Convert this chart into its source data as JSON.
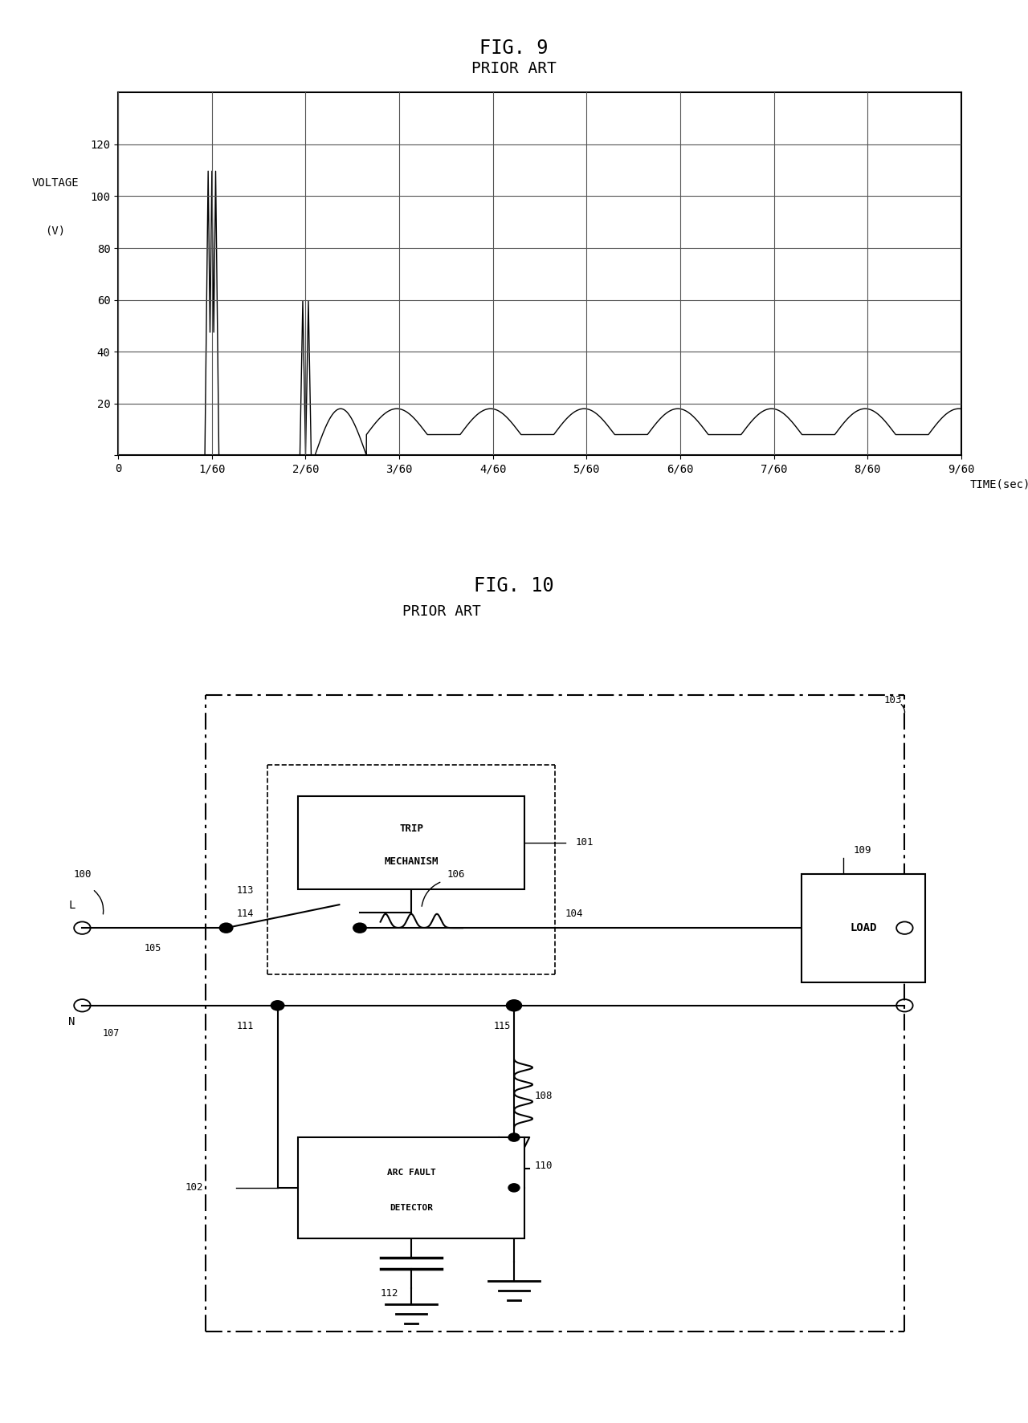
{
  "fig9_title": "FIG. 9",
  "fig9_subtitle": "PRIOR ART",
  "fig10_title": "FIG. 10",
  "fig10_subtitle": "PRIOR ART",
  "ylabel_line1": "VOLTAGE",
  "ylabel_line2": "(V)",
  "xlabel": "TIME(sec)",
  "yticks": [
    0,
    20,
    40,
    60,
    80,
    100,
    120
  ],
  "xtick_labels": [
    "0",
    "1/60",
    "2/60",
    "3/60",
    "4/60",
    "5/60",
    "6/60",
    "7/60",
    "8/60",
    "9/60"
  ],
  "ylim": [
    0,
    140
  ],
  "xlim": [
    0,
    9
  ],
  "bg_color": "#ffffff",
  "line_color": "#000000",
  "grid_color": "#888888"
}
